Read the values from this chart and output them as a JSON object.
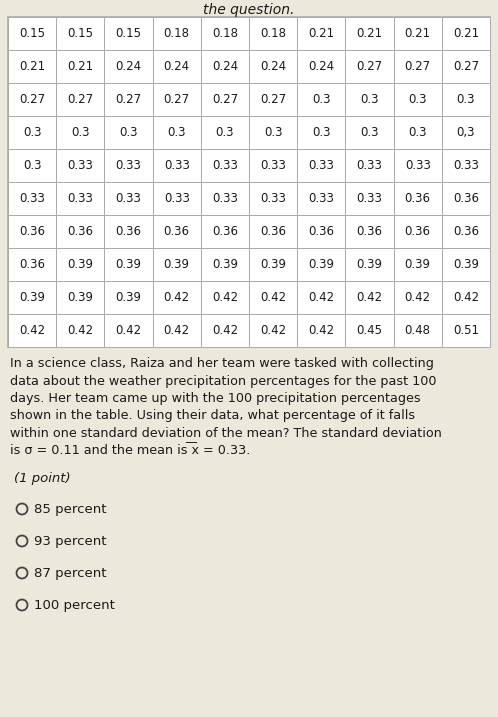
{
  "title_top": "the question.",
  "table_data": [
    [
      "0.15",
      "0.15",
      "0.15",
      "0.18",
      "0.18",
      "0.18",
      "0.21",
      "0.21",
      "0.21",
      "0.21"
    ],
    [
      "0.21",
      "0.21",
      "0.24",
      "0.24",
      "0.24",
      "0.24",
      "0.24",
      "0.27",
      "0.27",
      "0.27"
    ],
    [
      "0.27",
      "0.27",
      "0.27",
      "0.27",
      "0.27",
      "0.27",
      "0.3",
      "0.3",
      "0.3",
      "0.3"
    ],
    [
      "0.3",
      "0.3",
      "0.3",
      "0.3",
      "0.3",
      "0.3",
      "0.3",
      "0.3",
      "0.3",
      "0,3"
    ],
    [
      "0.3",
      "0.33",
      "0.33",
      "0.33",
      "0.33",
      "0.33",
      "0.33",
      "0.33",
      "0.33",
      "0.33"
    ],
    [
      "0.33",
      "0.33",
      "0.33",
      "0.33",
      "0.33",
      "0.33",
      "0.33",
      "0.33",
      "0.36",
      "0.36"
    ],
    [
      "0.36",
      "0.36",
      "0.36",
      "0.36",
      "0.36",
      "0.36",
      "0.36",
      "0.36",
      "0.36",
      "0.36"
    ],
    [
      "0.36",
      "0.39",
      "0.39",
      "0.39",
      "0.39",
      "0.39",
      "0.39",
      "0.39",
      "0.39",
      "0.39"
    ],
    [
      "0.39",
      "0.39",
      "0.39",
      "0.42",
      "0.42",
      "0.42",
      "0.42",
      "0.42",
      "0.42",
      "0.42"
    ],
    [
      "0.42",
      "0.42",
      "0.42",
      "0.42",
      "0.42",
      "0.42",
      "0.42",
      "0.45",
      "0.48",
      "0.51"
    ]
  ],
  "para_lines": [
    "In a science class, Raiza and her team were tasked with collecting",
    "data about the weather precipitation percentages for the past 100",
    "days. Her team came up with the 100 precipitation percentages",
    "shown in the table. Using their data, what percentage of it falls",
    "within one standard deviation of the mean? The standard deviation",
    "is σ = 0.11 and the mean is ͞x = 0.33."
  ],
  "point_label": "(1 point)",
  "choices": [
    "85 percent",
    "93 percent",
    "87 percent",
    "100 percent"
  ],
  "bg_color": "#ede8dc",
  "table_bg": "#ffffff",
  "table_border": "#aaaaaa",
  "text_color": "#1a1a1a",
  "font_size_table": 8.5,
  "font_size_para": 9.2,
  "font_size_point": 9.5,
  "font_size_choices": 9.5,
  "title_fontsize": 10
}
